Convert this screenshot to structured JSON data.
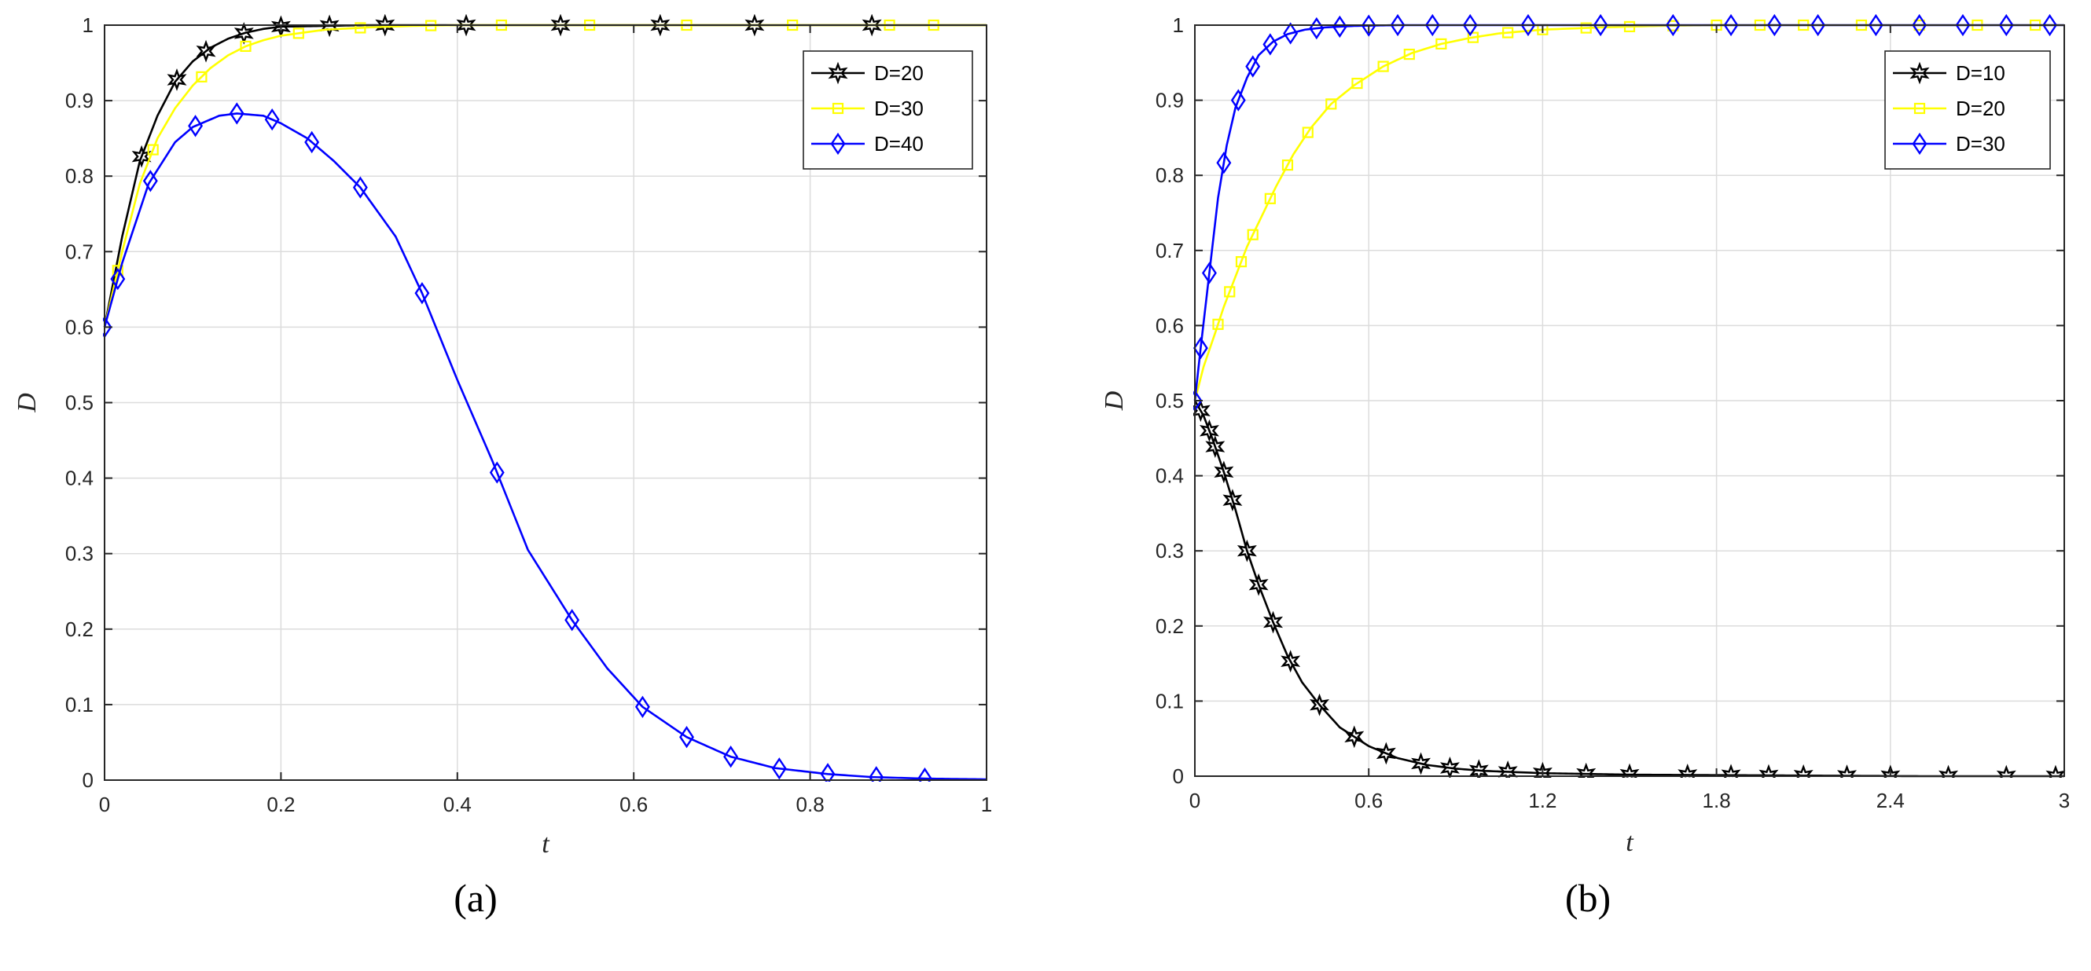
{
  "chart_data": [
    {
      "id": "a",
      "type": "line",
      "caption": "(a)",
      "xlabel": "t",
      "ylabel": "D",
      "xlim": [
        0,
        1
      ],
      "ylim": [
        0,
        1
      ],
      "xticks": [
        "0",
        "0.2",
        "0.4",
        "0.6",
        "0.8",
        "1"
      ],
      "xtick_values": [
        0,
        0.2,
        0.4,
        0.6,
        0.8,
        1
      ],
      "yticks": [
        "0",
        "0.1",
        "0.2",
        "0.3",
        "0.4",
        "0.5",
        "0.6",
        "0.7",
        "0.8",
        "0.9",
        "1"
      ],
      "ytick_values": [
        0,
        0.1,
        0.2,
        0.3,
        0.4,
        0.5,
        0.6,
        0.7,
        0.8,
        0.9,
        1
      ],
      "grid": true,
      "legend_position": "top-right",
      "series": [
        {
          "name": "D=20",
          "color": "#000000",
          "marker": "star",
          "x": [
            0,
            0.02,
            0.04,
            0.06,
            0.08,
            0.1,
            0.12,
            0.14,
            0.16,
            0.18,
            0.2,
            0.25,
            0.3,
            0.4,
            0.5,
            0.6,
            0.7,
            0.8,
            0.9,
            1.0
          ],
          "y": [
            0.6,
            0.72,
            0.82,
            0.88,
            0.925,
            0.952,
            0.97,
            0.982,
            0.99,
            0.995,
            0.998,
            0.999,
            1,
            1,
            1,
            1,
            1,
            1,
            1,
            1
          ],
          "marker_x": [
            0.042,
            0.082,
            0.115,
            0.158,
            0.2,
            0.255,
            0.318,
            0.41,
            0.517,
            0.63,
            0.737,
            0.87
          ]
        },
        {
          "name": "D=30",
          "color": "#ffff00",
          "marker": "square",
          "x": [
            0,
            0.02,
            0.04,
            0.06,
            0.08,
            0.1,
            0.12,
            0.14,
            0.16,
            0.18,
            0.2,
            0.25,
            0.3,
            0.35,
            0.4,
            0.5,
            0.6,
            0.7,
            0.8,
            0.9,
            1.0
          ],
          "y": [
            0.6,
            0.7,
            0.79,
            0.85,
            0.89,
            0.92,
            0.943,
            0.96,
            0.972,
            0.98,
            0.986,
            0.994,
            0.997,
            0.999,
            1,
            1,
            1,
            1,
            1,
            1,
            1
          ],
          "marker_x": [
            0.015,
            0.055,
            0.11,
            0.16,
            0.22,
            0.29,
            0.37,
            0.45,
            0.55,
            0.66,
            0.78,
            0.89,
            0.94
          ]
        },
        {
          "name": "D=40",
          "color": "#0000ff",
          "marker": "diamond",
          "x": [
            0,
            0.02,
            0.05,
            0.08,
            0.1,
            0.13,
            0.15,
            0.18,
            0.2,
            0.23,
            0.26,
            0.29,
            0.33,
            0.36,
            0.4,
            0.44,
            0.48,
            0.53,
            0.57,
            0.61,
            0.66,
            0.71,
            0.76,
            0.82,
            0.87,
            0.93,
            1.0
          ],
          "y": [
            0.6,
            0.685,
            0.79,
            0.845,
            0.865,
            0.88,
            0.883,
            0.88,
            0.87,
            0.85,
            0.82,
            0.785,
            0.72,
            0.645,
            0.53,
            0.422,
            0.305,
            0.212,
            0.148,
            0.097,
            0.057,
            0.031,
            0.016,
            0.008,
            0.004,
            0.002,
            0.001
          ],
          "marker_x": [
            0,
            0.015,
            0.052,
            0.103,
            0.15,
            0.19,
            0.235,
            0.29,
            0.36,
            0.445,
            0.53,
            0.61,
            0.66,
            0.71,
            0.765,
            0.82,
            0.875,
            0.93
          ]
        }
      ]
    },
    {
      "id": "b",
      "type": "line",
      "caption": "(b)",
      "xlabel": "t",
      "ylabel": "D",
      "xlim": [
        0,
        3
      ],
      "ylim": [
        0,
        1
      ],
      "xticks": [
        "0",
        "0.6",
        "1.2",
        "1.8",
        "2.4",
        "3"
      ],
      "xtick_values": [
        0,
        0.6,
        1.2,
        1.8,
        2.4,
        3
      ],
      "yticks": [
        "0",
        "0.1",
        "0.2",
        "0.3",
        "0.4",
        "0.5",
        "0.6",
        "0.7",
        "0.8",
        "0.9",
        "1"
      ],
      "ytick_values": [
        0,
        0.1,
        0.2,
        0.3,
        0.4,
        0.5,
        0.6,
        0.7,
        0.8,
        0.9,
        1
      ],
      "grid": true,
      "legend_position": "top-right",
      "series": [
        {
          "name": "D=10",
          "color": "#000000",
          "marker": "star",
          "x": [
            0,
            0.03,
            0.06,
            0.1,
            0.14,
            0.18,
            0.22,
            0.27,
            0.32,
            0.37,
            0.43,
            0.5,
            0.6,
            0.7,
            0.8,
            0.9,
            1.0,
            1.2,
            1.5,
            2.0,
            2.5,
            3.0
          ],
          "y": [
            0.5,
            0.48,
            0.45,
            0.405,
            0.355,
            0.3,
            0.255,
            0.205,
            0.16,
            0.125,
            0.095,
            0.065,
            0.04,
            0.024,
            0.015,
            0.01,
            0.007,
            0.004,
            0.002,
            0.001,
            0,
            0
          ],
          "marker_x": [
            0.02,
            0.05,
            0.07,
            0.1,
            0.13,
            0.18,
            0.22,
            0.27,
            0.33,
            0.43,
            0.55,
            0.66,
            0.78,
            0.88,
            0.98,
            1.08,
            1.2,
            1.35,
            1.5,
            1.7,
            1.85,
            1.98,
            2.1,
            2.25,
            2.4,
            2.6,
            2.8,
            2.97
          ]
        },
        {
          "name": "D=20",
          "color": "#ffff00",
          "marker": "square",
          "x": [
            0,
            0.03,
            0.07,
            0.1,
            0.14,
            0.18,
            0.23,
            0.28,
            0.34,
            0.4,
            0.47,
            0.55,
            0.65,
            0.75,
            0.85,
            0.95,
            1.05,
            1.2,
            1.4,
            1.6,
            1.8,
            2.1,
            2.5,
            3.0
          ],
          "y": [
            0.5,
            0.545,
            0.59,
            0.625,
            0.665,
            0.705,
            0.745,
            0.785,
            0.828,
            0.863,
            0.895,
            0.92,
            0.945,
            0.963,
            0.975,
            0.983,
            0.989,
            0.994,
            0.997,
            0.999,
            1,
            1,
            1,
            1
          ],
          "marker_x": [
            0.08,
            0.12,
            0.16,
            0.2,
            0.26,
            0.32,
            0.39,
            0.47,
            0.56,
            0.65,
            0.74,
            0.85,
            0.96,
            1.08,
            1.2,
            1.35,
            1.5,
            1.65,
            1.8,
            1.95,
            2.1,
            2.3,
            2.5,
            2.7,
            2.9
          ]
        },
        {
          "name": "D=30",
          "color": "#0000ff",
          "marker": "diamond",
          "x": [
            0,
            0.02,
            0.05,
            0.08,
            0.11,
            0.14,
            0.18,
            0.22,
            0.27,
            0.32,
            0.38,
            0.45,
            0.55,
            0.7,
            0.9,
            1.2,
            1.5,
            2.0,
            2.5,
            3.0
          ],
          "y": [
            0.5,
            0.57,
            0.67,
            0.77,
            0.84,
            0.89,
            0.93,
            0.96,
            0.978,
            0.988,
            0.994,
            0.997,
            0.999,
            1,
            1,
            1,
            1,
            1,
            1,
            1
          ],
          "marker_x": [
            0,
            0.02,
            0.05,
            0.1,
            0.15,
            0.2,
            0.26,
            0.33,
            0.42,
            0.5,
            0.6,
            0.7,
            0.82,
            0.95,
            1.15,
            1.4,
            1.65,
            1.85,
            2.0,
            2.15,
            2.35,
            2.5,
            2.65,
            2.8,
            2.95
          ]
        }
      ]
    }
  ]
}
